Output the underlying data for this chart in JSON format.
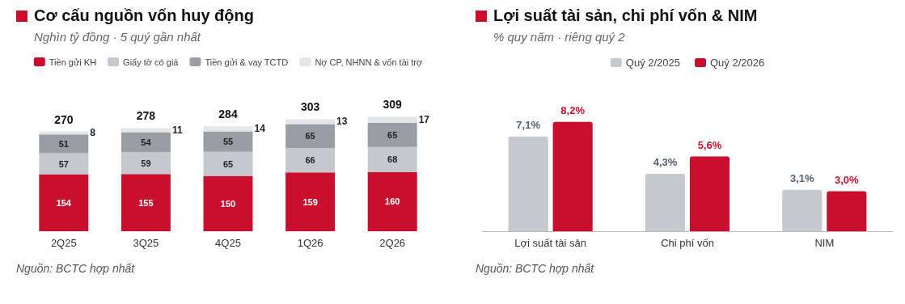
{
  "chart_data": [
    {
      "type": "bar",
      "title": "Cơ cấu nguồn vốn huy động",
      "subtitle": "Nghìn tỷ đồng · 5 quý gần nhất",
      "annotations": [
        "Nguồn: BCTC hợp nhất"
      ],
      "categories": [
        "2Q25",
        "3Q25",
        "4Q25",
        "1Q26",
        "2Q26"
      ],
      "stacked": true,
      "data_labels": true,
      "legend": "top",
      "totals": [
        "270",
        "278",
        "284",
        "303",
        "309"
      ],
      "series": [
        {
          "name": "Tiền gửi KH",
          "color": "#c8102e",
          "values": [
            154,
            155,
            150,
            159,
            160
          ]
        },
        {
          "name": "Giấy tờ có giá",
          "color": "#c5c9cd",
          "values": [
            57,
            59,
            65,
            66,
            68
          ]
        },
        {
          "name": "Tiền gửi & vay TCTD",
          "color": "#9a9da2",
          "values": [
            51,
            54,
            55,
            65,
            65
          ]
        },
        {
          "name": "Nợ CP, NHNN & vốn tài trợ",
          "color": "#e3e5e8",
          "values": [
            8,
            11,
            14,
            13,
            17
          ]
        }
      ]
    },
    {
      "type": "bar",
      "title": "Lợi suất tài sản, chi phí vốn & NIM",
      "subtitle": "% quy năm · riêng quý 2",
      "annotations": [
        "Nguồn: BCTC hợp nhất"
      ],
      "categories": [
        "Lợi suất tài sản",
        "Chi phí vốn",
        "NIM"
      ],
      "legend": "top",
      "series": [
        {
          "name": "Quý 2/2025",
          "color": "#c5c9cd",
          "values": [
            7.1,
            4.3,
            3.1
          ],
          "value_labels": [
            "7,1%",
            "4,3%",
            "3,1%"
          ]
        },
        {
          "name": "Quý 2/2026",
          "color": "#c8102e",
          "values": [
            8.2,
            5.6,
            3.0
          ],
          "value_labels": [
            "8,2%",
            "5,6%",
            "3,0%"
          ]
        }
      ]
    }
  ]
}
